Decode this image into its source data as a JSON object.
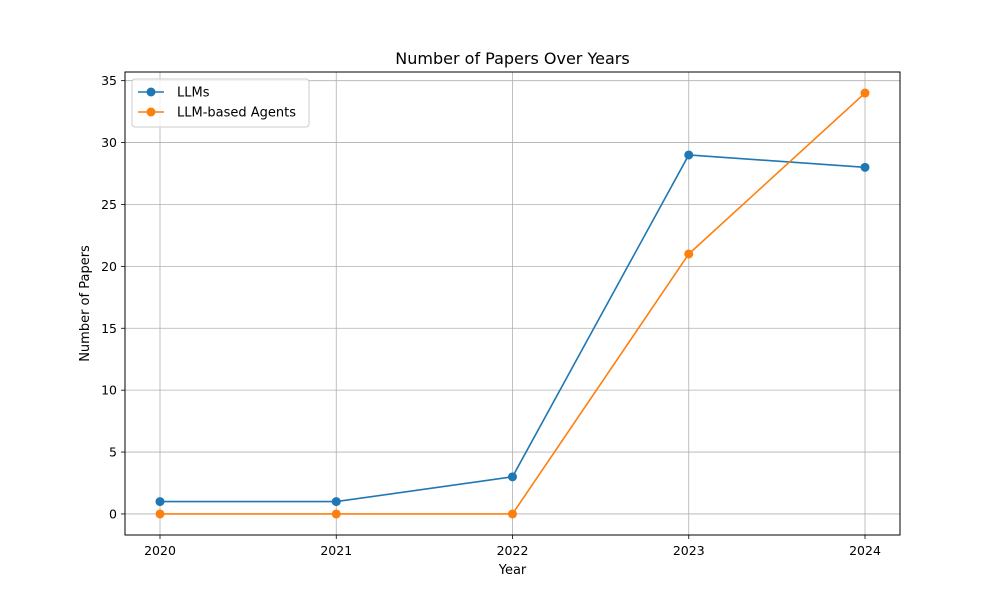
{
  "chart_data": {
    "type": "line",
    "title": "Number of Papers Over Years",
    "xlabel": "Year",
    "ylabel": "Number of Papers",
    "x": [
      "2020",
      "2021",
      "2022",
      "2023",
      "2024"
    ],
    "series": [
      {
        "name": "LLMs",
        "values": [
          1,
          1,
          3,
          29,
          28
        ],
        "color": "#1f77b4"
      },
      {
        "name": "LLM-based Agents",
        "values": [
          0,
          0,
          0,
          21,
          34
        ],
        "color": "#ff7f0e"
      }
    ],
    "yticks": [
      0,
      5,
      10,
      15,
      20,
      25,
      30,
      35
    ],
    "ylim": [
      -1.7,
      35.7
    ],
    "grid": true,
    "legend_position": "upper left"
  }
}
